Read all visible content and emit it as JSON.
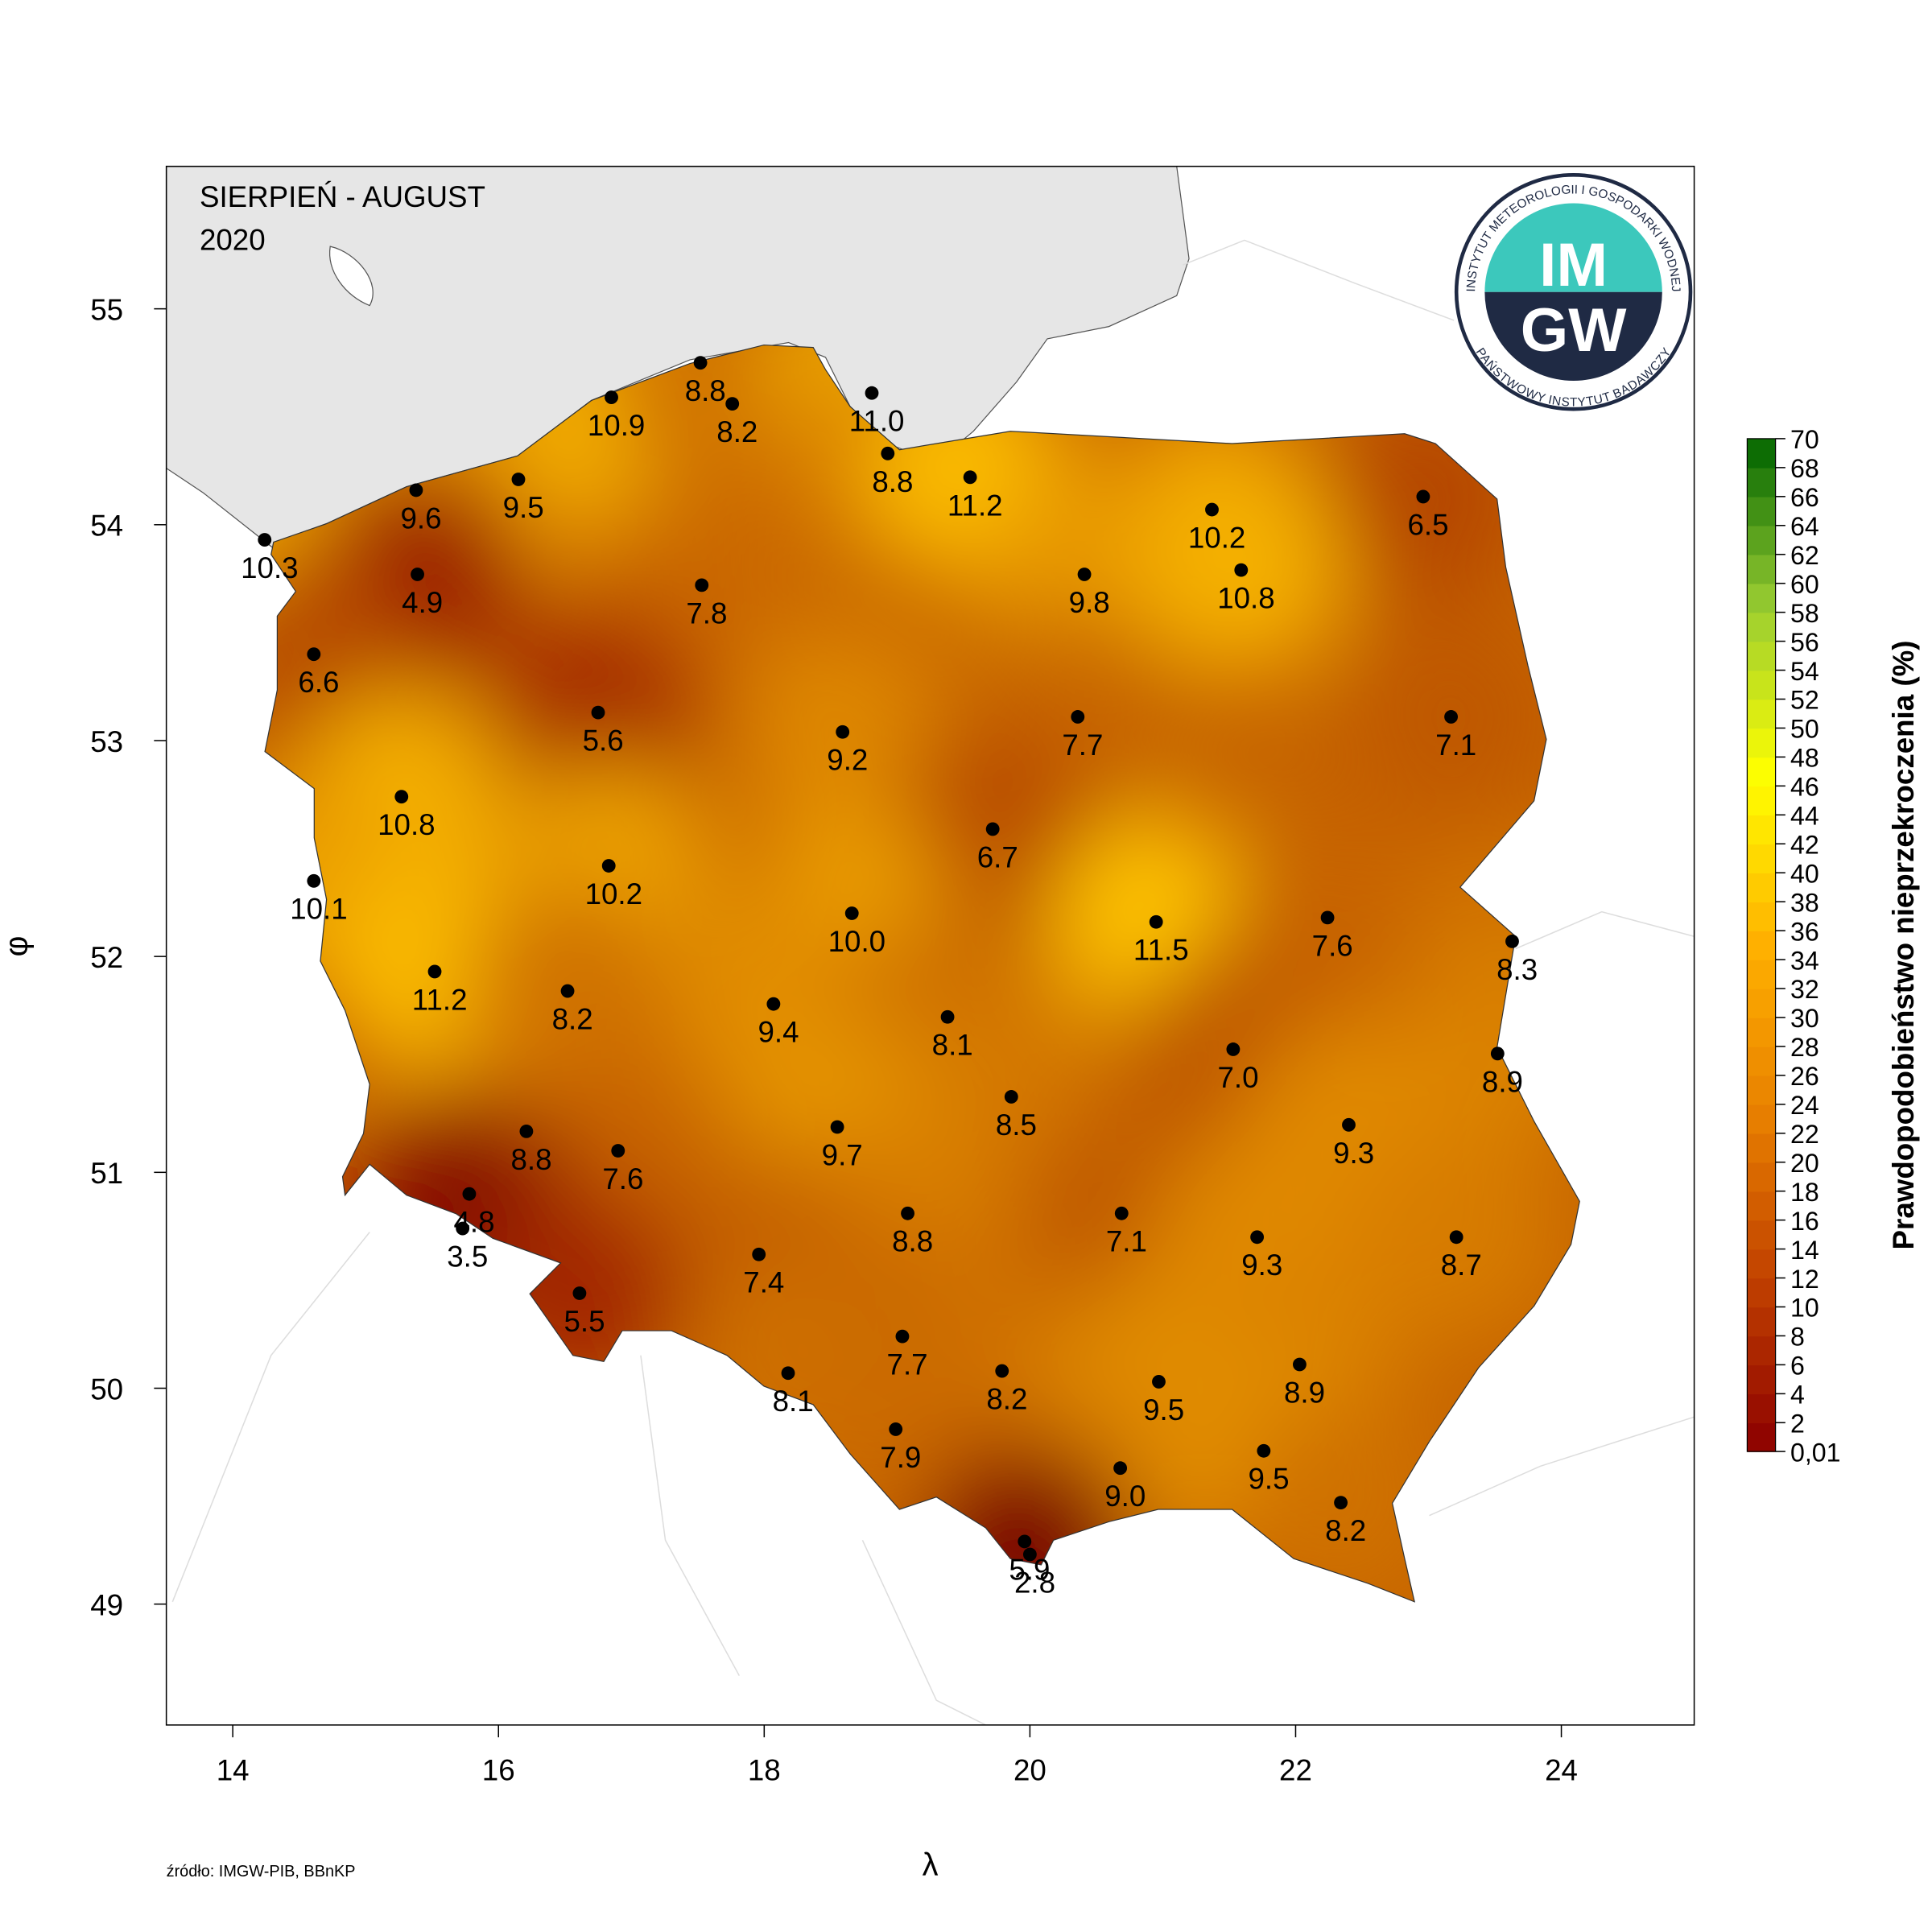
{
  "chart_data": {
    "type": "scatter",
    "title": "SIERPIEŃ - AUGUST",
    "subtitle": "2020",
    "x_label": "λ",
    "y_label": "φ",
    "source": "źródło: IMGW-PIB, BBnKP",
    "xlim": [
      13.5,
      25
    ],
    "ylim": [
      48.44,
      55.66
    ],
    "xticks": [
      14,
      16,
      18,
      20,
      22,
      24
    ],
    "yticks": [
      49,
      50,
      51,
      52,
      53,
      54,
      55
    ],
    "x": [
      14.24,
      15.38,
      16.15,
      16.85,
      17.52,
      17.76,
      18.81,
      18.93,
      19.55,
      21.37,
      22.96,
      15.39,
      17.53,
      20.41,
      21.59,
      14.61,
      16.75,
      18.59,
      20.36,
      23.17,
      15.27,
      14.61,
      19.72,
      16.83,
      18.66,
      20.95,
      22.24,
      23.63,
      15.52,
      16.52,
      18.07,
      19.38,
      21.53,
      23.52,
      19.86,
      18.55,
      22.4,
      16.21,
      16.9,
      15.78,
      15.73,
      19.08,
      20.69,
      21.71,
      23.21,
      17.96,
      16.61,
      19.04,
      18.18,
      19.79,
      20.97,
      22.03,
      18.99,
      20.68,
      21.76,
      22.34,
      19.96,
      20.0
    ],
    "y": [
      53.93,
      54.16,
      54.21,
      54.59,
      54.75,
      54.56,
      54.61,
      54.33,
      54.22,
      54.07,
      54.13,
      53.77,
      53.72,
      53.77,
      53.79,
      53.4,
      53.13,
      53.04,
      53.11,
      53.11,
      52.74,
      52.35,
      52.59,
      52.42,
      52.2,
      52.16,
      52.18,
      52.07,
      51.93,
      51.84,
      51.78,
      51.72,
      51.57,
      51.55,
      51.35,
      51.21,
      51.22,
      51.19,
      51.1,
      50.9,
      50.74,
      50.81,
      50.81,
      50.7,
      50.7,
      50.62,
      50.44,
      50.24,
      50.07,
      50.08,
      50.03,
      50.11,
      49.81,
      49.63,
      49.71,
      49.47,
      49.29,
      49.23
    ],
    "values": [
      10.3,
      9.6,
      9.5,
      10.9,
      8.8,
      8.2,
      11,
      8.8,
      11.2,
      10.2,
      6.5,
      4.9,
      7.8,
      9.8,
      10.8,
      6.6,
      5.6,
      9.2,
      7.7,
      7.1,
      10.8,
      10.1,
      6.7,
      10.2,
      10,
      11.5,
      7.6,
      8.3,
      11.2,
      8.2,
      9.4,
      8.1,
      7,
      8.9,
      8.5,
      9.7,
      9.3,
      8.8,
      7.6,
      4.8,
      3.5,
      8.8,
      7.1,
      9.3,
      8.7,
      7.4,
      5.5,
      7.7,
      8.1,
      8.2,
      9.5,
      8.9,
      7.9,
      9,
      9.5,
      8.2,
      5.9,
      2.8
    ],
    "value_labels": [
      "10.3",
      "9.6",
      "9.5",
      "10.9",
      "8.8",
      "8.2",
      "11.0",
      "8.8",
      "11.2",
      "10.2",
      "6.5",
      "4.9",
      "7.8",
      "9.8",
      "10.8",
      "6.6",
      "5.6",
      "9.2",
      "7.7",
      "7.1",
      "10.8",
      "10.1",
      "6.7",
      "10.2",
      "10.0",
      "11.5",
      "7.6",
      "8.3",
      "11.2",
      "8.2",
      "9.4",
      "8.1",
      "7.0",
      "8.9",
      "8.5",
      "9.7",
      "9.3",
      "8.8",
      "7.6",
      "4.8",
      "3.5",
      "8.8",
      "7.1",
      "9.3",
      "8.7",
      "7.4",
      "5.5",
      "7.7",
      "8.1",
      "8.2",
      "9.5",
      "8.9",
      "7.9",
      "9.0",
      "9.5",
      "8.2",
      "5.9",
      "2.8"
    ],
    "point_color": "#000000",
    "surface_colors": [
      "#7a0000",
      "#9a1800",
      "#c05a00",
      "#e08a00",
      "#ffc400"
    ],
    "colorbar": {
      "title": "Prawdopodobieństwo nieprzekroczenia (%)",
      "lim": [
        0.01,
        70
      ],
      "colors": [
        "#8b0000",
        "#c04000",
        "#e88000",
        "#ffb000",
        "#ffff00",
        "#9acd32",
        "#006400"
      ],
      "ticks": [
        {
          "value": 0.01,
          "label": "0,01"
        },
        2,
        4,
        6,
        8,
        10,
        12,
        14,
        16,
        18,
        20,
        22,
        24,
        26,
        28,
        30,
        32,
        34,
        36,
        38,
        40,
        42,
        44,
        46,
        48,
        50,
        52,
        54,
        56,
        58,
        60,
        62,
        64,
        66,
        68,
        70
      ]
    }
  },
  "logo": {
    "top": "IM",
    "bottom": "GW",
    "ring_top": "INSTYTUT METEOROLOGII I GOSPODARKI WODNEJ",
    "ring_bottom": "PAŃSTWOWY INSTYTUT BADAWCZY"
  }
}
